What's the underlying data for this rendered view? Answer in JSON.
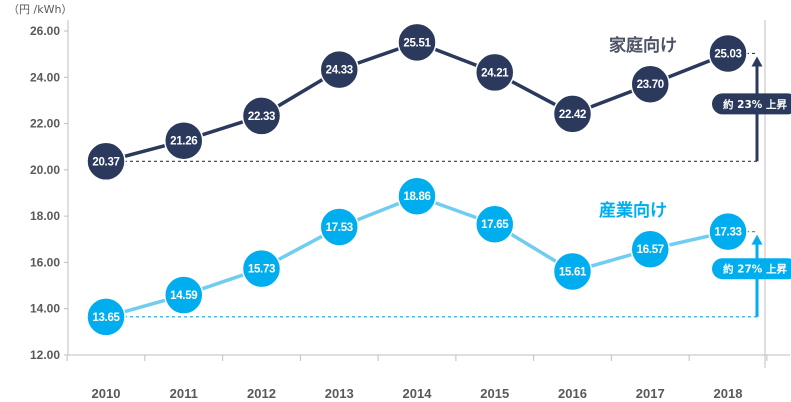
{
  "chart_data": {
    "type": "line",
    "unit_label": "（円 /kWh）",
    "categories": [
      "2010",
      "2011",
      "2012",
      "2013",
      "2014",
      "2015",
      "2016",
      "2017",
      "2018"
    ],
    "ylim": [
      12,
      26
    ],
    "yticks": [
      "12.00",
      "14.00",
      "16.00",
      "18.00",
      "20.00",
      "22.00",
      "24.00",
      "26.00"
    ],
    "ytick_values": [
      12,
      14,
      16,
      18,
      20,
      22,
      24,
      26
    ],
    "series": [
      {
        "name": "家庭向け",
        "color": "#2b3a5c",
        "values": [
          20.37,
          21.26,
          22.33,
          24.33,
          25.51,
          24.21,
          22.42,
          23.7,
          25.03
        ],
        "labels": [
          "20.37",
          "21.26",
          "22.33",
          "24.33",
          "25.51",
          "24.21",
          "22.42",
          "23.70",
          "25.03"
        ],
        "increase_label": "約 23% 上昇"
      },
      {
        "name": "産業向け",
        "color": "#00aeef",
        "line_color": "#6fcdf2",
        "values": [
          13.65,
          14.59,
          15.73,
          17.53,
          18.86,
          17.65,
          15.61,
          16.57,
          17.33
        ],
        "labels": [
          "13.65",
          "14.59",
          "15.73",
          "17.53",
          "18.86",
          "17.65",
          "15.61",
          "16.57",
          "17.33"
        ],
        "increase_label": "約 27% 上昇"
      }
    ],
    "grid": false
  }
}
